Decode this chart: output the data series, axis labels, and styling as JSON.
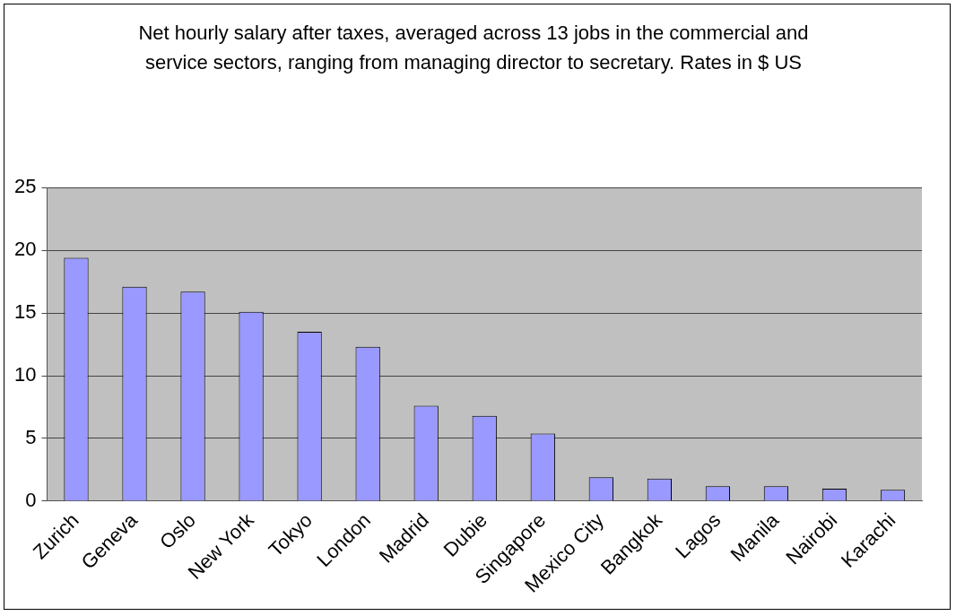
{
  "chart_data": {
    "type": "bar",
    "title": "Net hourly salary after taxes, averaged across 13 jobs in the commercial and service sectors, ranging from managing director to secretary. Rates in $ US",
    "categories": [
      "Zurich",
      "Geneva",
      "Oslo",
      "New York",
      "Tokyo",
      "London",
      "Madrid",
      "Dubie",
      "Singapore",
      "Mexico City",
      "Bangkok",
      "Lagos",
      "Manila",
      "Nairobi",
      "Karachi"
    ],
    "values": [
      19.4,
      17.1,
      16.7,
      15.1,
      13.5,
      12.3,
      7.6,
      6.8,
      5.4,
      1.9,
      1.8,
      1.2,
      1.2,
      1.0,
      0.9
    ],
    "color": "#9999ff",
    "ylim": [
      0,
      25
    ],
    "yticks": [
      0,
      5,
      10,
      15,
      20,
      25
    ],
    "grid": "y"
  }
}
